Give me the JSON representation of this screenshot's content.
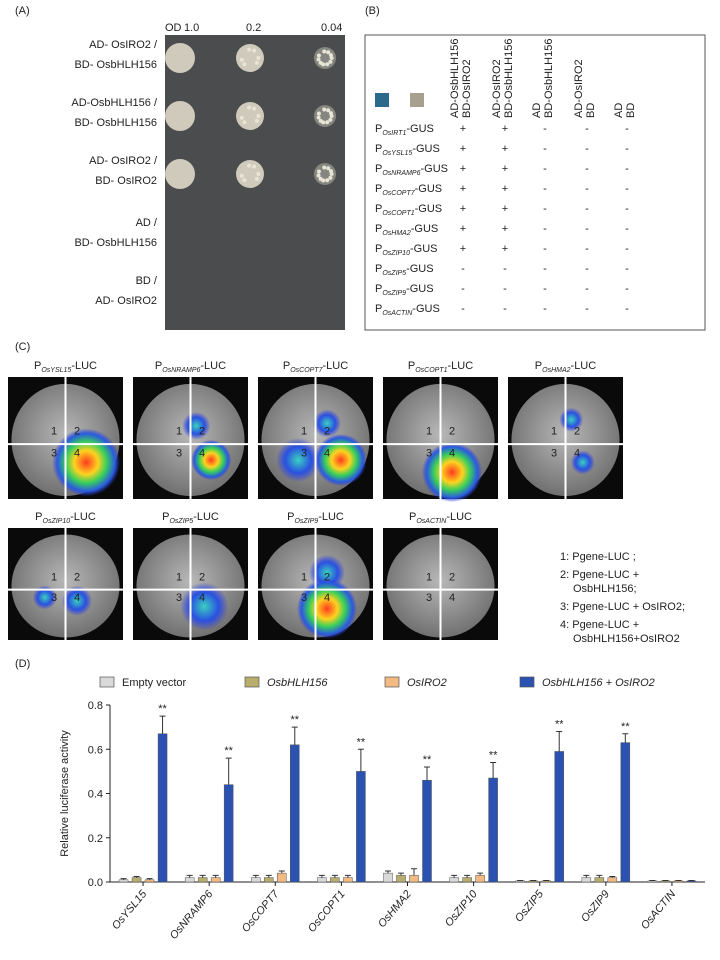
{
  "panel_a": {
    "label": "(A)",
    "od_label": "OD",
    "concentrations": [
      "1.0",
      "0.2",
      "0.04"
    ],
    "rows": [
      [
        "AD- OsIRO2 /",
        "BD- OsbHLH156"
      ],
      [
        "AD-OsbHLH156 /",
        "BD- OsbHLH156"
      ],
      [
        "AD- OsIRO2 /",
        "BD- OsIRO2"
      ],
      [
        "AD /",
        "BD- OsbHLH156"
      ],
      [
        "BD /",
        "AD- OsIRO2"
      ]
    ]
  },
  "panel_b": {
    "label": "(B)",
    "columns": [
      [
        "AD-OsbHLH156",
        "BD-OsIRO2"
      ],
      [
        "AD-OsIRO2",
        "BD-OsbHLH156"
      ],
      [
        "AD",
        "BD-OsbHLH156"
      ],
      [
        "AD-OsIRO2",
        "BD"
      ],
      [
        "AD",
        "BD"
      ]
    ],
    "prefix": "P",
    "suffix": "-GUS",
    "rows": [
      {
        "gene": "OsIRT1",
        "results": [
          "+",
          "+",
          "-",
          "-",
          "-"
        ]
      },
      {
        "gene": "OsYSL15",
        "results": [
          "+",
          "+",
          "-",
          "-",
          "-"
        ]
      },
      {
        "gene": "OsNRAMP6",
        "results": [
          "+",
          "+",
          "-",
          "-",
          "-"
        ]
      },
      {
        "gene": "OsCOPT7",
        "results": [
          "+",
          "+",
          "-",
          "-",
          "-"
        ]
      },
      {
        "gene": "OsCOPT1",
        "results": [
          "+",
          "+",
          "-",
          "-",
          "-"
        ]
      },
      {
        "gene": "OsHMA2",
        "results": [
          "+",
          "+",
          "-",
          "-",
          "-"
        ]
      },
      {
        "gene": "OsZIP10",
        "results": [
          "+",
          "+",
          "-",
          "-",
          "-"
        ]
      },
      {
        "gene": "OsZIP5",
        "results": [
          "-",
          "-",
          "-",
          "-",
          "-"
        ]
      },
      {
        "gene": "OsZIP9",
        "results": [
          "-",
          "-",
          "-",
          "-",
          "-"
        ]
      },
      {
        "gene": "OsACTIN",
        "results": [
          "-",
          "-",
          "-",
          "-",
          "-"
        ]
      }
    ]
  },
  "panel_c": {
    "label": "(C)",
    "prefix": "P",
    "suffix": "-LUC",
    "genes": [
      "OsYSL15",
      "OsNRAMP6",
      "OsCOPT7",
      "OsCOPT1",
      "OsHMA2",
      "OsZIP10",
      "OsZIP5",
      "OsZIP9",
      "OsACTIN"
    ],
    "quadrant_labels": [
      "1",
      "2",
      "3",
      "4"
    ],
    "legend": [
      "1: Pgene-LUC ;",
      "2: Pgene-LUC +",
      "OsbHLH156;",
      "3: Pgene-LUC + OsIRO2;",
      "4: Pgene-LUC +",
      "OsbHLH156+OsIRO2"
    ]
  },
  "chart_data": {
    "type": "bar",
    "label": "(D)",
    "ylabel": "Relative luciferase activity",
    "categories": [
      "OsYSL15",
      "OsNRAMP6",
      "OsCOPT7",
      "OsCOPT1",
      "OsHMA2",
      "OsZIP10",
      "OsZIP5",
      "OsZIP9",
      "OsACTIN"
    ],
    "series": [
      {
        "name": "Empty vector",
        "color": "#d9d9d9",
        "values": [
          0.01,
          0.02,
          0.02,
          0.02,
          0.04,
          0.02,
          0.005,
          0.02,
          0.005
        ],
        "errors": [
          0.005,
          0.01,
          0.01,
          0.01,
          0.01,
          0.01,
          0.002,
          0.01,
          0.002
        ]
      },
      {
        "name": "OsbHLH156",
        "color": "#b9ad6e",
        "values": [
          0.02,
          0.02,
          0.02,
          0.02,
          0.03,
          0.02,
          0.005,
          0.02,
          0.005
        ],
        "errors": [
          0.005,
          0.01,
          0.01,
          0.01,
          0.01,
          0.01,
          0.002,
          0.01,
          0.002
        ]
      },
      {
        "name": "OsIRO2",
        "color": "#f3b982",
        "values": [
          0.01,
          0.02,
          0.04,
          0.02,
          0.03,
          0.03,
          0.005,
          0.02,
          0.005
        ],
        "errors": [
          0.005,
          0.01,
          0.01,
          0.01,
          0.03,
          0.01,
          0.002,
          0.005,
          0.002
        ]
      },
      {
        "name": "OsbHLH156 + OsIRO2",
        "color": "#2b52b0",
        "values": [
          0.67,
          0.44,
          0.62,
          0.5,
          0.46,
          0.47,
          0.59,
          0.63,
          0.005
        ],
        "errors": [
          0.08,
          0.12,
          0.08,
          0.1,
          0.06,
          0.07,
          0.09,
          0.04,
          0.002
        ]
      }
    ],
    "significance": [
      "**",
      "**",
      "**",
      "**",
      "**",
      "**",
      "**",
      "**",
      null
    ],
    "ylim": [
      0,
      0.8
    ],
    "yticks": [
      {
        "value": 0,
        "label": "0.0"
      },
      0.2,
      0.4,
      0.6,
      0.8
    ]
  }
}
